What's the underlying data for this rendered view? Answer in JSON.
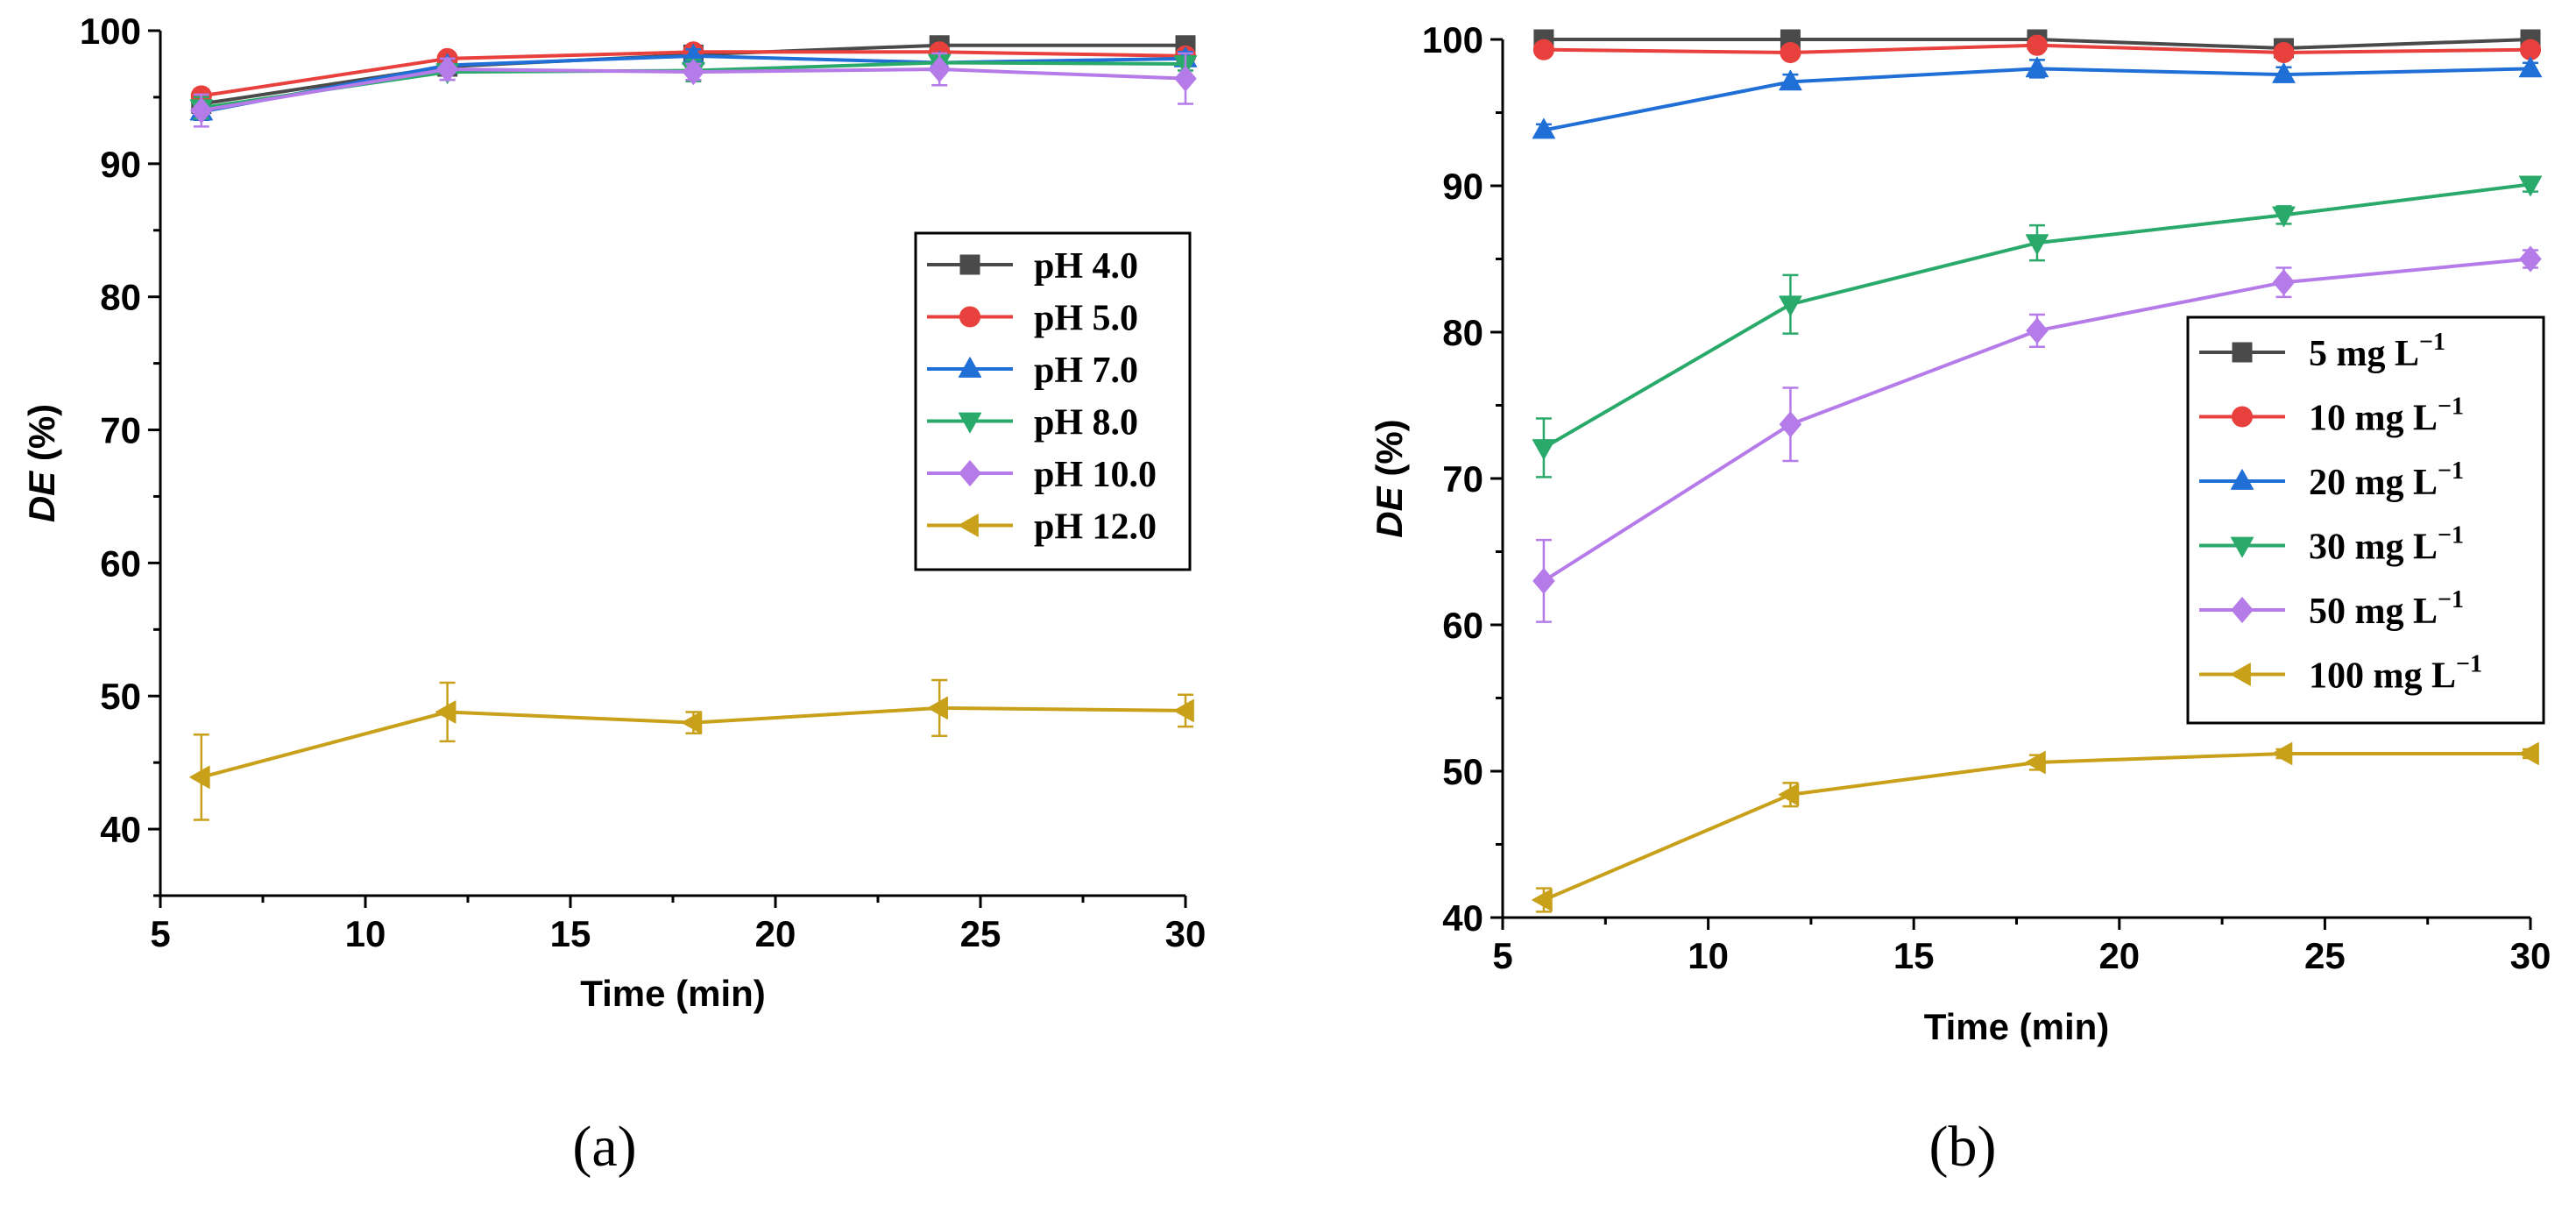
{
  "chart_data": [
    {
      "type": "line",
      "panel_label": "(a)",
      "xlabel": "Time (min)",
      "ylabel_italic": "DE",
      "ylabel_rest": " (%)",
      "xlim": [
        5,
        30
      ],
      "ylim": [
        35,
        100
      ],
      "xticks": [
        5,
        10,
        15,
        20,
        25,
        30
      ],
      "yticks": [
        40,
        50,
        60,
        70,
        80,
        90,
        100
      ],
      "legend_position": "center-right",
      "x": [
        6,
        12,
        18,
        24,
        30
      ],
      "series": [
        {
          "name": "pH 4.0",
          "marker": "square",
          "color": "#4a4a4a",
          "values": [
            94.5,
            97.3,
            98.2,
            98.9,
            98.9
          ],
          "errors": [
            0.5,
            0.5,
            0.4,
            0.3,
            0.3
          ]
        },
        {
          "name": "pH 5.0",
          "marker": "circle",
          "color": "#e8403c",
          "values": [
            95.1,
            97.9,
            98.4,
            98.4,
            98.1
          ],
          "errors": [
            0.5,
            0.4,
            0.4,
            0.4,
            0.4
          ]
        },
        {
          "name": "pH 7.0",
          "marker": "triangle-up",
          "color": "#1f6fd6",
          "values": [
            93.9,
            97.4,
            98.1,
            97.6,
            97.9
          ],
          "errors": [
            0.6,
            0.5,
            0.5,
            0.5,
            0.5
          ]
        },
        {
          "name": "pH 8.0",
          "marker": "triangle-down",
          "color": "#2aaa6a",
          "values": [
            94.2,
            96.9,
            97.0,
            97.6,
            97.5
          ],
          "errors": [
            0.8,
            0.6,
            0.8,
            0.5,
            0.5
          ]
        },
        {
          "name": "pH 10.0",
          "marker": "diamond",
          "color": "#b57be8",
          "values": [
            94.0,
            97.1,
            96.9,
            97.1,
            96.4
          ],
          "errors": [
            1.2,
            0.8,
            0.6,
            1.2,
            1.9
          ]
        },
        {
          "name": "pH 12.0",
          "marker": "triangle-left",
          "color": "#c8a01a",
          "values": [
            43.9,
            48.8,
            48.0,
            49.1,
            48.9
          ],
          "errors": [
            3.2,
            2.2,
            0.8,
            2.1,
            1.2
          ]
        }
      ]
    },
    {
      "type": "line",
      "panel_label": "(b)",
      "xlabel": "Time (min)",
      "ylabel_italic": "DE",
      "ylabel_rest": " (%)",
      "xlim": [
        5,
        30
      ],
      "ylim": [
        40,
        100
      ],
      "xticks": [
        5,
        10,
        15,
        20,
        25,
        30
      ],
      "yticks": [
        40,
        50,
        60,
        70,
        80,
        90,
        100
      ],
      "legend_position": "bottom-right",
      "x": [
        6,
        12,
        18,
        24,
        30
      ],
      "series": [
        {
          "name": "5 mg L",
          "superscript": "−1",
          "marker": "square",
          "color": "#4a4a4a",
          "values": [
            100.0,
            100.0,
            100.0,
            99.4,
            100.0
          ],
          "errors": [
            0.3,
            0.3,
            0.3,
            0.4,
            0.3
          ]
        },
        {
          "name": "10 mg L",
          "superscript": "−1",
          "marker": "circle",
          "color": "#e8403c",
          "values": [
            99.3,
            99.1,
            99.6,
            99.1,
            99.3
          ],
          "errors": [
            0.4,
            0.4,
            0.4,
            0.4,
            0.4
          ]
        },
        {
          "name": "20 mg L",
          "superscript": "−1",
          "marker": "triangle-up",
          "color": "#1f6fd6",
          "values": [
            93.8,
            97.1,
            98.0,
            97.6,
            98.0
          ],
          "errors": [
            0.4,
            0.5,
            0.6,
            0.5,
            0.4
          ]
        },
        {
          "name": "30 mg L",
          "superscript": "−1",
          "marker": "triangle-down",
          "color": "#2aaa6a",
          "values": [
            72.1,
            81.9,
            86.1,
            88.0,
            90.1
          ],
          "errors": [
            2.0,
            2.0,
            1.2,
            0.6,
            0.5
          ]
        },
        {
          "name": "50 mg L",
          "superscript": "−1",
          "marker": "diamond",
          "color": "#b57be8",
          "values": [
            63.0,
            73.7,
            80.1,
            83.4,
            85.0
          ],
          "errors": [
            2.8,
            2.5,
            1.1,
            1.0,
            0.6
          ]
        },
        {
          "name": "100 mg L",
          "superscript": "−1",
          "marker": "triangle-left",
          "color": "#c8a01a",
          "values": [
            41.2,
            48.4,
            50.6,
            51.2,
            51.2
          ],
          "errors": [
            0.8,
            0.8,
            0.5,
            0.3,
            0.3
          ]
        }
      ]
    }
  ]
}
